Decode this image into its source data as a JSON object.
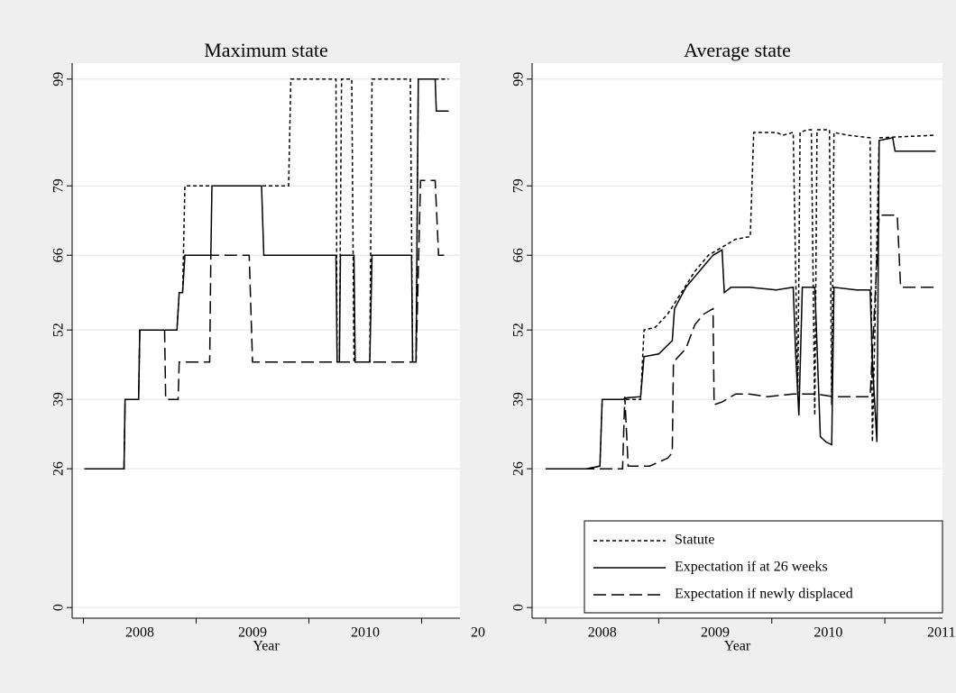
{
  "chart_data": [
    {
      "type": "line",
      "title": "Maximum state",
      "x_label": "Year",
      "xlim": [
        2007.4,
        2010.84
      ],
      "ylim": [
        -2,
        102
      ],
      "grid": true,
      "yticks": [
        0,
        26,
        39,
        52,
        66,
        79,
        99
      ],
      "xticks": [
        2008,
        2009,
        2010,
        {
          "value": 2011,
          "label": "20"
        }
      ],
      "xminorticks": [
        2007.5,
        2008.5,
        2009.5,
        2010.5
      ],
      "series": [
        {
          "color": "#000000",
          "line_style": "dotted",
          "x": [
            2007.51,
            2007.86,
            2007.87,
            2007.99,
            2008.0,
            2008.33,
            2008.35,
            2008.38,
            2008.4,
            2009.32,
            2009.34,
            2009.74,
            2009.75,
            2009.77,
            2009.79,
            2009.88,
            2009.9,
            2010.04,
            2010.06,
            2010.4,
            2010.42,
            2010.45,
            2010.47,
            2010.74
          ],
          "values": [
            26,
            26,
            39,
            39,
            52,
            52,
            59,
            59,
            79,
            79,
            99,
            99,
            46,
            46,
            99,
            99,
            46,
            46,
            99,
            99,
            46,
            46,
            99,
            99
          ]
        },
        {
          "color": "#000000",
          "line_style": "solid",
          "x": [
            2007.51,
            2007.86,
            2007.87,
            2007.99,
            2008.0,
            2008.33,
            2008.35,
            2008.38,
            2008.4,
            2008.63,
            2008.64,
            2009.08,
            2009.1,
            2009.74,
            2009.75,
            2009.77,
            2009.78,
            2009.9,
            2009.91,
            2010.04,
            2010.06,
            2010.41,
            2010.42,
            2010.45,
            2010.47,
            2010.62,
            2010.63,
            2010.74
          ],
          "values": [
            26,
            26,
            39,
            39,
            52,
            52,
            59,
            59,
            66,
            66,
            79,
            79,
            66,
            66,
            46,
            46,
            66,
            66,
            46,
            46,
            66,
            66,
            46,
            46,
            99,
            99,
            93,
            93
          ]
        },
        {
          "color": "#000000",
          "line_style": "dashed",
          "x": [
            2007.51,
            2007.86,
            2007.87,
            2007.99,
            2008.0,
            2008.22,
            2008.23,
            2008.34,
            2008.35,
            2008.62,
            2008.63,
            2008.97,
            2009.0,
            2010.45,
            2010.49,
            2010.62,
            2010.65,
            2010.74
          ],
          "values": [
            26,
            26,
            39,
            39,
            52,
            52,
            39,
            39,
            46,
            46,
            66,
            66,
            46,
            46,
            80,
            80,
            66,
            66
          ]
        }
      ]
    },
    {
      "type": "line",
      "title": "Average state",
      "x_label": "Year",
      "xlim": [
        2007.38,
        2011.01
      ],
      "ylim": [
        -2,
        102
      ],
      "grid": true,
      "legend": "lower right",
      "yticks": [
        0,
        26,
        39,
        52,
        66,
        79,
        99
      ],
      "xticks": [
        2008,
        2009,
        2010,
        2011
      ],
      "xminorticks": [
        2007.5,
        2008.5,
        2009.5,
        2010.5
      ],
      "series": [
        {
          "name": "Statute",
          "color": "#000000",
          "line_style": "dotted",
          "x": [
            2007.5,
            2007.86,
            2007.98,
            2008.0,
            2008.34,
            2008.37,
            2008.47,
            2008.58,
            2008.7,
            2008.82,
            2008.94,
            2009.06,
            2009.1,
            2009.18,
            2009.31,
            2009.34,
            2009.54,
            2009.6,
            2009.69,
            2009.73,
            2009.75,
            2009.81,
            2009.85,
            2009.88,
            2009.9,
            2010.01,
            2010.03,
            2010.05,
            2010.17,
            2010.37,
            2010.39,
            2010.45,
            2010.95
          ],
          "values": [
            26,
            26,
            26.5,
            39,
            39,
            52,
            52.5,
            55,
            59,
            63,
            66,
            67.5,
            68,
            69,
            69.5,
            89,
            89,
            88.5,
            89,
            40,
            89,
            89.5,
            89.5,
            36,
            89.5,
            89.5,
            38,
            89,
            88.5,
            88,
            31,
            88,
            88.5
          ]
        },
        {
          "name": "Expectation if at 26 weeks",
          "color": "#000000",
          "line_style": "solid",
          "x": [
            2007.5,
            2007.86,
            2007.98,
            2008.0,
            2008.18,
            2008.22,
            2008.34,
            2008.37,
            2008.5,
            2008.62,
            2008.64,
            2008.74,
            2008.86,
            2008.98,
            2009.06,
            2009.08,
            2009.14,
            2009.3,
            2009.54,
            2009.69,
            2009.71,
            2009.74,
            2009.77,
            2009.88,
            2009.89,
            2009.93,
            2009.98,
            2010.03,
            2010.05,
            2010.25,
            2010.37,
            2010.39,
            2010.43,
            2010.45,
            2010.57,
            2010.59,
            2010.95
          ],
          "values": [
            26,
            26,
            26.5,
            39,
            39,
            39.3,
            39.5,
            47,
            47.5,
            50,
            56,
            60,
            63,
            66,
            67,
            59,
            60,
            60,
            59.5,
            60,
            48,
            36,
            60,
            60,
            55,
            32,
            31,
            30.5,
            60,
            59.5,
            59.5,
            46,
            31,
            87.5,
            88,
            85.5,
            85.5
          ]
        },
        {
          "name": "Expectation if newly displaced",
          "color": "#000000",
          "line_style": "dashed",
          "x": [
            2007.5,
            2008.18,
            2008.2,
            2008.23,
            2008.42,
            2008.58,
            2008.62,
            2008.63,
            2008.74,
            2008.82,
            2008.9,
            2008.98,
            2008.99,
            2009.06,
            2009.18,
            2009.3,
            2009.46,
            2009.69,
            2009.89,
            2010.05,
            2010.37,
            2010.45,
            2010.61,
            2010.64,
            2010.95
          ],
          "values": [
            26,
            26,
            39.5,
            26.5,
            26.5,
            28,
            29,
            46,
            48.5,
            53,
            55,
            56,
            38,
            38.5,
            40,
            40,
            39.5,
            40,
            40,
            39.5,
            39.5,
            73.5,
            73.5,
            60,
            60
          ]
        }
      ]
    }
  ]
}
